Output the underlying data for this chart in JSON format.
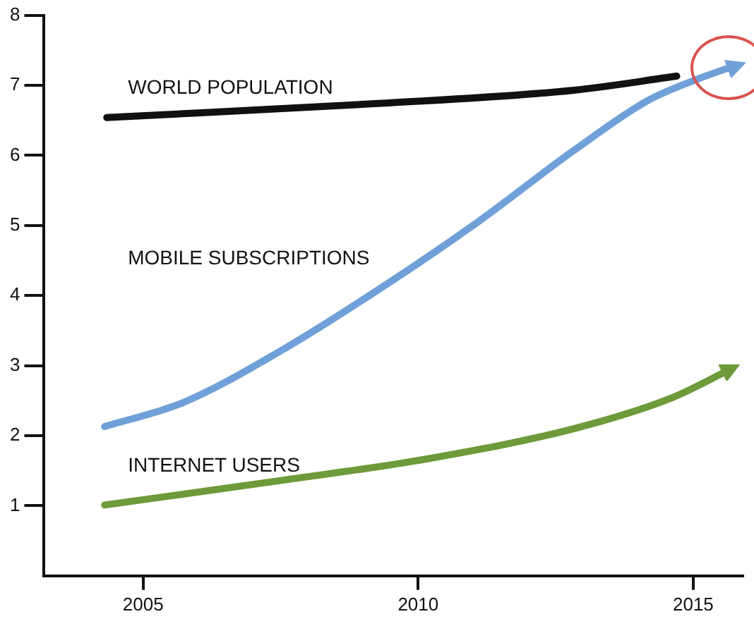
{
  "chart_data": {
    "type": "line",
    "xlim": [
      2003.2,
      2015.9
    ],
    "xticks": [
      2005,
      2010,
      2015
    ],
    "ylim": [
      0,
      8
    ],
    "yticks": [
      1,
      2,
      3,
      4,
      5,
      6,
      7,
      8
    ],
    "grid": false,
    "legend": false,
    "marker": "none",
    "series": [
      {
        "name": "WORLD POPULATION",
        "color": "#111111",
        "x": [
          2004.34,
          2009.27,
          2012.83,
          2014.7
        ],
        "values": [
          6.54,
          6.74,
          6.93,
          7.13
        ]
      },
      {
        "name": "MOBILE SUBSCRIPTIONS",
        "color": "#6fa0d8",
        "x": [
          2004.3,
          2005.72,
          2007.5,
          2009.27,
          2011.05,
          2012.83,
          2014.17,
          2015.05,
          2015.76
        ],
        "values": [
          2.13,
          2.47,
          3.21,
          4.08,
          5.03,
          6.07,
          6.78,
          7.08,
          7.28
        ]
      },
      {
        "name": "INTERNET USERS",
        "color": "#6e9a3a",
        "x": [
          2004.3,
          2007.5,
          2010.17,
          2012.83,
          2014.61,
          2015.66
        ],
        "values": [
          1.01,
          1.36,
          1.67,
          2.1,
          2.54,
          2.94
        ]
      }
    ]
  }
}
